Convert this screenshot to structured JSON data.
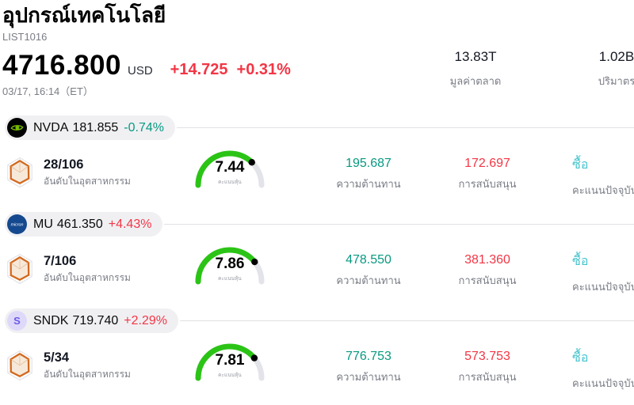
{
  "header": {
    "title": "อุปกรณ์เทคโนโลยี",
    "list_id": "LIST1016",
    "price": "4716.800",
    "currency": "USD",
    "change_abs": "+14.725",
    "change_pct": "+0.31%",
    "datetime": "03/17, 16:14（ET）",
    "stats": [
      {
        "value": "13.83T",
        "label": "มูลค่าตลาด"
      },
      {
        "value": "1.02B",
        "label": "ปริมาตร"
      }
    ]
  },
  "labels": {
    "rank": "อันดับในอุตสาหกรรม",
    "gauge": "คะแนนหุ้น",
    "resistance": "ความต้านทาน",
    "support": "การสนับสนุน",
    "signal": "คะแนนปัจจุบัน"
  },
  "colors": {
    "red": "#f23645",
    "teal": "#089981",
    "buy_cyan": "#47c4ce",
    "gauge_green": "#2bc416",
    "gauge_track": "#e3e3ea",
    "chip_bg": "#f0f0f3",
    "divider": "#e1e1e6",
    "nvidia_green": "#76b900",
    "micron_blue": "#15498f",
    "sndk_purple": "#6a5ae8",
    "sndk_purple_bg": "#ded9f9"
  },
  "rows": [
    {
      "ticker": "NVDA",
      "price": "181.855",
      "change": "-0.74%",
      "change_dir": "down",
      "logo": "nvda",
      "sndk_letter": "",
      "rank": "28/106",
      "score": "7.44",
      "score_value": 7.44,
      "resistance": "195.687",
      "support": "172.697",
      "signal": "ซื้อ"
    },
    {
      "ticker": "MU",
      "price": "461.350",
      "change": "+4.43%",
      "change_dir": "up",
      "logo": "mu",
      "sndk_letter": "",
      "rank": "7/106",
      "score": "7.86",
      "score_value": 7.86,
      "resistance": "478.550",
      "support": "381.360",
      "signal": "ซื้อ"
    },
    {
      "ticker": "SNDK",
      "price": "719.740",
      "change": "+2.29%",
      "change_dir": "up",
      "logo": "sndk",
      "sndk_letter": "S",
      "rank": "5/34",
      "score": "7.81",
      "score_value": 7.81,
      "resistance": "776.753",
      "support": "573.753",
      "signal": "ซื้อ"
    }
  ]
}
